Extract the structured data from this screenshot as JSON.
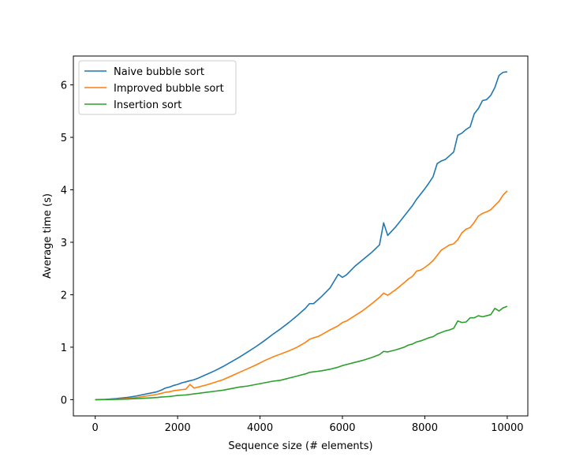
{
  "chart_data": {
    "type": "line",
    "title": "",
    "xlabel": "Sequence size (# elements)",
    "ylabel": "Average time (s)",
    "xlim": [
      -530,
      10500
    ],
    "ylim": [
      -0.31,
      6.55
    ],
    "xticks": [
      0,
      2000,
      4000,
      6000,
      8000,
      10000
    ],
    "xtick_labels": [
      "0",
      "2000",
      "4000",
      "6000",
      "8000",
      "10000"
    ],
    "yticks": [
      0,
      1,
      2,
      3,
      4,
      5,
      6
    ],
    "ytick_labels": [
      "0",
      "1",
      "2",
      "3",
      "4",
      "5",
      "6"
    ],
    "grid": false,
    "legend_position": "top-left",
    "x": [
      0,
      250,
      500,
      750,
      1000,
      1250,
      1500,
      1600,
      1700,
      1800,
      1900,
      2000,
      2100,
      2200,
      2300,
      2400,
      2500,
      2700,
      2900,
      3100,
      3300,
      3500,
      3700,
      3900,
      4100,
      4300,
      4500,
      4700,
      4900,
      5100,
      5200,
      5300,
      5400,
      5500,
      5700,
      5900,
      6000,
      6100,
      6300,
      6500,
      6700,
      6900,
      7000,
      7100,
      7300,
      7500,
      7600,
      7700,
      7800,
      7900,
      8000,
      8100,
      8200,
      8300,
      8400,
      8500,
      8600,
      8700,
      8800,
      8900,
      9000,
      9100,
      9200,
      9300,
      9400,
      9500,
      9600,
      9700,
      9800,
      9900,
      10000
    ],
    "series": [
      {
        "name": "Naive bubble sort",
        "color": "#1f77b4",
        "values": [
          0,
          0.005,
          0.02,
          0.04,
          0.07,
          0.11,
          0.15,
          0.18,
          0.22,
          0.24,
          0.27,
          0.29,
          0.32,
          0.34,
          0.36,
          0.38,
          0.41,
          0.48,
          0.55,
          0.63,
          0.72,
          0.81,
          0.91,
          1.01,
          1.12,
          1.24,
          1.35,
          1.47,
          1.6,
          1.74,
          1.83,
          1.83,
          1.9,
          1.97,
          2.13,
          2.39,
          2.33,
          2.38,
          2.54,
          2.67,
          2.8,
          2.95,
          3.37,
          3.13,
          3.3,
          3.5,
          3.6,
          3.7,
          3.82,
          3.92,
          4.02,
          4.13,
          4.25,
          4.5,
          4.55,
          4.58,
          4.65,
          4.72,
          5.04,
          5.08,
          5.15,
          5.2,
          5.45,
          5.55,
          5.7,
          5.72,
          5.8,
          5.95,
          6.18,
          6.24,
          6.25
        ]
      },
      {
        "name": "Improved bubble sort",
        "color": "#ff7f0e",
        "values": [
          0,
          0.003,
          0.01,
          0.02,
          0.04,
          0.07,
          0.1,
          0.12,
          0.14,
          0.15,
          0.17,
          0.18,
          0.19,
          0.2,
          0.29,
          0.22,
          0.24,
          0.28,
          0.33,
          0.38,
          0.45,
          0.52,
          0.59,
          0.66,
          0.74,
          0.81,
          0.87,
          0.93,
          1.0,
          1.09,
          1.15,
          1.18,
          1.2,
          1.24,
          1.33,
          1.41,
          1.47,
          1.5,
          1.6,
          1.7,
          1.82,
          1.95,
          2.03,
          1.99,
          2.1,
          2.23,
          2.3,
          2.35,
          2.45,
          2.47,
          2.52,
          2.58,
          2.65,
          2.75,
          2.85,
          2.9,
          2.95,
          2.97,
          3.05,
          3.18,
          3.25,
          3.28,
          3.38,
          3.5,
          3.55,
          3.58,
          3.62,
          3.7,
          3.78,
          3.9,
          3.98
        ]
      },
      {
        "name": "Insertion sort",
        "color": "#2ca02c",
        "values": [
          0,
          0.001,
          0.005,
          0.01,
          0.02,
          0.03,
          0.04,
          0.05,
          0.055,
          0.06,
          0.07,
          0.08,
          0.085,
          0.09,
          0.1,
          0.11,
          0.12,
          0.14,
          0.16,
          0.18,
          0.21,
          0.24,
          0.26,
          0.29,
          0.32,
          0.35,
          0.37,
          0.41,
          0.45,
          0.49,
          0.52,
          0.53,
          0.54,
          0.55,
          0.58,
          0.62,
          0.65,
          0.67,
          0.71,
          0.75,
          0.8,
          0.86,
          0.92,
          0.91,
          0.95,
          1.0,
          1.04,
          1.06,
          1.1,
          1.12,
          1.15,
          1.18,
          1.2,
          1.25,
          1.28,
          1.31,
          1.33,
          1.36,
          1.5,
          1.47,
          1.48,
          1.56,
          1.56,
          1.6,
          1.58,
          1.6,
          1.62,
          1.74,
          1.69,
          1.75,
          1.78
        ]
      }
    ]
  }
}
